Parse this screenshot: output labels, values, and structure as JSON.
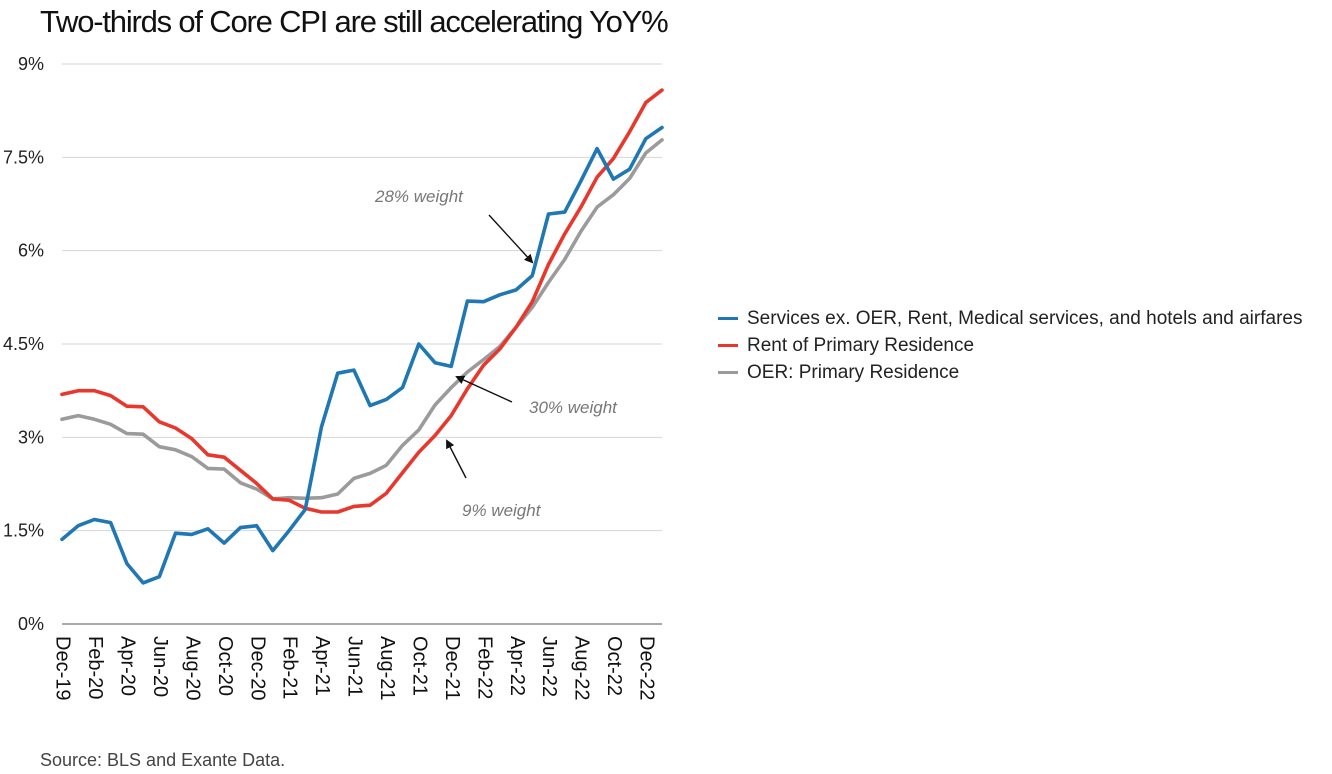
{
  "chart_data": {
    "type": "line",
    "title": "Two-thirds of Core CPI are still accelerating YoY%",
    "xlabel": "",
    "ylabel": "",
    "ylim": [
      0,
      9
    ],
    "yticks": [
      0,
      1.5,
      3,
      4.5,
      6,
      7.5,
      9
    ],
    "ytick_labels": [
      "0%",
      "1.5%",
      "3%",
      "4.5%",
      "6%",
      "7.5%",
      "9%"
    ],
    "x": [
      "Dec-19",
      "Jan-20",
      "Feb-20",
      "Mar-20",
      "Apr-20",
      "May-20",
      "Jun-20",
      "Jul-20",
      "Aug-20",
      "Sep-20",
      "Oct-20",
      "Nov-20",
      "Dec-20",
      "Jan-21",
      "Feb-21",
      "Mar-21",
      "Apr-21",
      "May-21",
      "Jun-21",
      "Jul-21",
      "Aug-21",
      "Sep-21",
      "Oct-21",
      "Nov-21",
      "Dec-21",
      "Jan-22",
      "Feb-22",
      "Mar-22",
      "Apr-22",
      "May-22",
      "Jun-22",
      "Jul-22",
      "Aug-22",
      "Sep-22",
      "Oct-22",
      "Nov-22",
      "Dec-22",
      "Jan-23"
    ],
    "xtick_labels": [
      "Dec-19",
      "Feb-20",
      "Apr-20",
      "Jun-20",
      "Aug-20",
      "Oct-20",
      "Dec-20",
      "Feb-21",
      "Apr-21",
      "Jun-21",
      "Aug-21",
      "Oct-21",
      "Dec-21",
      "Feb-22",
      "Apr-22",
      "Jun-22",
      "Aug-22",
      "Oct-22",
      "Dec-22"
    ],
    "grid": true,
    "legend_position": "right",
    "series": [
      {
        "name": "Services ex. OER, Rent, Medical services, and hotels and airfares",
        "color": "#1f77b4",
        "values": [
          1.36,
          1.58,
          1.68,
          1.63,
          0.97,
          0.66,
          0.76,
          1.46,
          1.44,
          1.53,
          1.3,
          1.55,
          1.58,
          1.18,
          1.5,
          1.84,
          3.17,
          4.03,
          4.08,
          3.51,
          3.61,
          3.8,
          4.5,
          4.2,
          4.14,
          5.19,
          5.18,
          5.29,
          5.37,
          5.6,
          6.59,
          6.62,
          7.12,
          7.64,
          7.15,
          7.31,
          7.8,
          7.98
        ]
      },
      {
        "name": "Rent of Primary Residence",
        "color": "#e8372c",
        "values": [
          3.69,
          3.75,
          3.75,
          3.67,
          3.5,
          3.49,
          3.25,
          3.15,
          2.98,
          2.72,
          2.68,
          2.47,
          2.26,
          2.01,
          1.99,
          1.86,
          1.8,
          1.8,
          1.89,
          1.91,
          2.1,
          2.43,
          2.76,
          3.03,
          3.35,
          3.78,
          4.16,
          4.42,
          4.77,
          5.18,
          5.78,
          6.27,
          6.7,
          7.18,
          7.48,
          7.91,
          8.38,
          8.58
        ]
      },
      {
        "name": "OER: Primary Residence",
        "color": "#9b9b9b",
        "values": [
          3.29,
          3.35,
          3.29,
          3.21,
          3.06,
          3.05,
          2.85,
          2.8,
          2.69,
          2.5,
          2.49,
          2.27,
          2.17,
          2.01,
          2.03,
          2.02,
          2.03,
          2.09,
          2.34,
          2.42,
          2.55,
          2.87,
          3.12,
          3.52,
          3.8,
          4.05,
          4.25,
          4.46,
          4.77,
          5.09,
          5.49,
          5.86,
          6.31,
          6.7,
          6.9,
          7.16,
          7.57,
          7.78
        ]
      }
    ],
    "annotations": [
      {
        "text": "28% weight"
      },
      {
        "text": "30% weight"
      },
      {
        "text": "9% weight"
      }
    ]
  },
  "source": "Source: BLS and  Exante Data."
}
